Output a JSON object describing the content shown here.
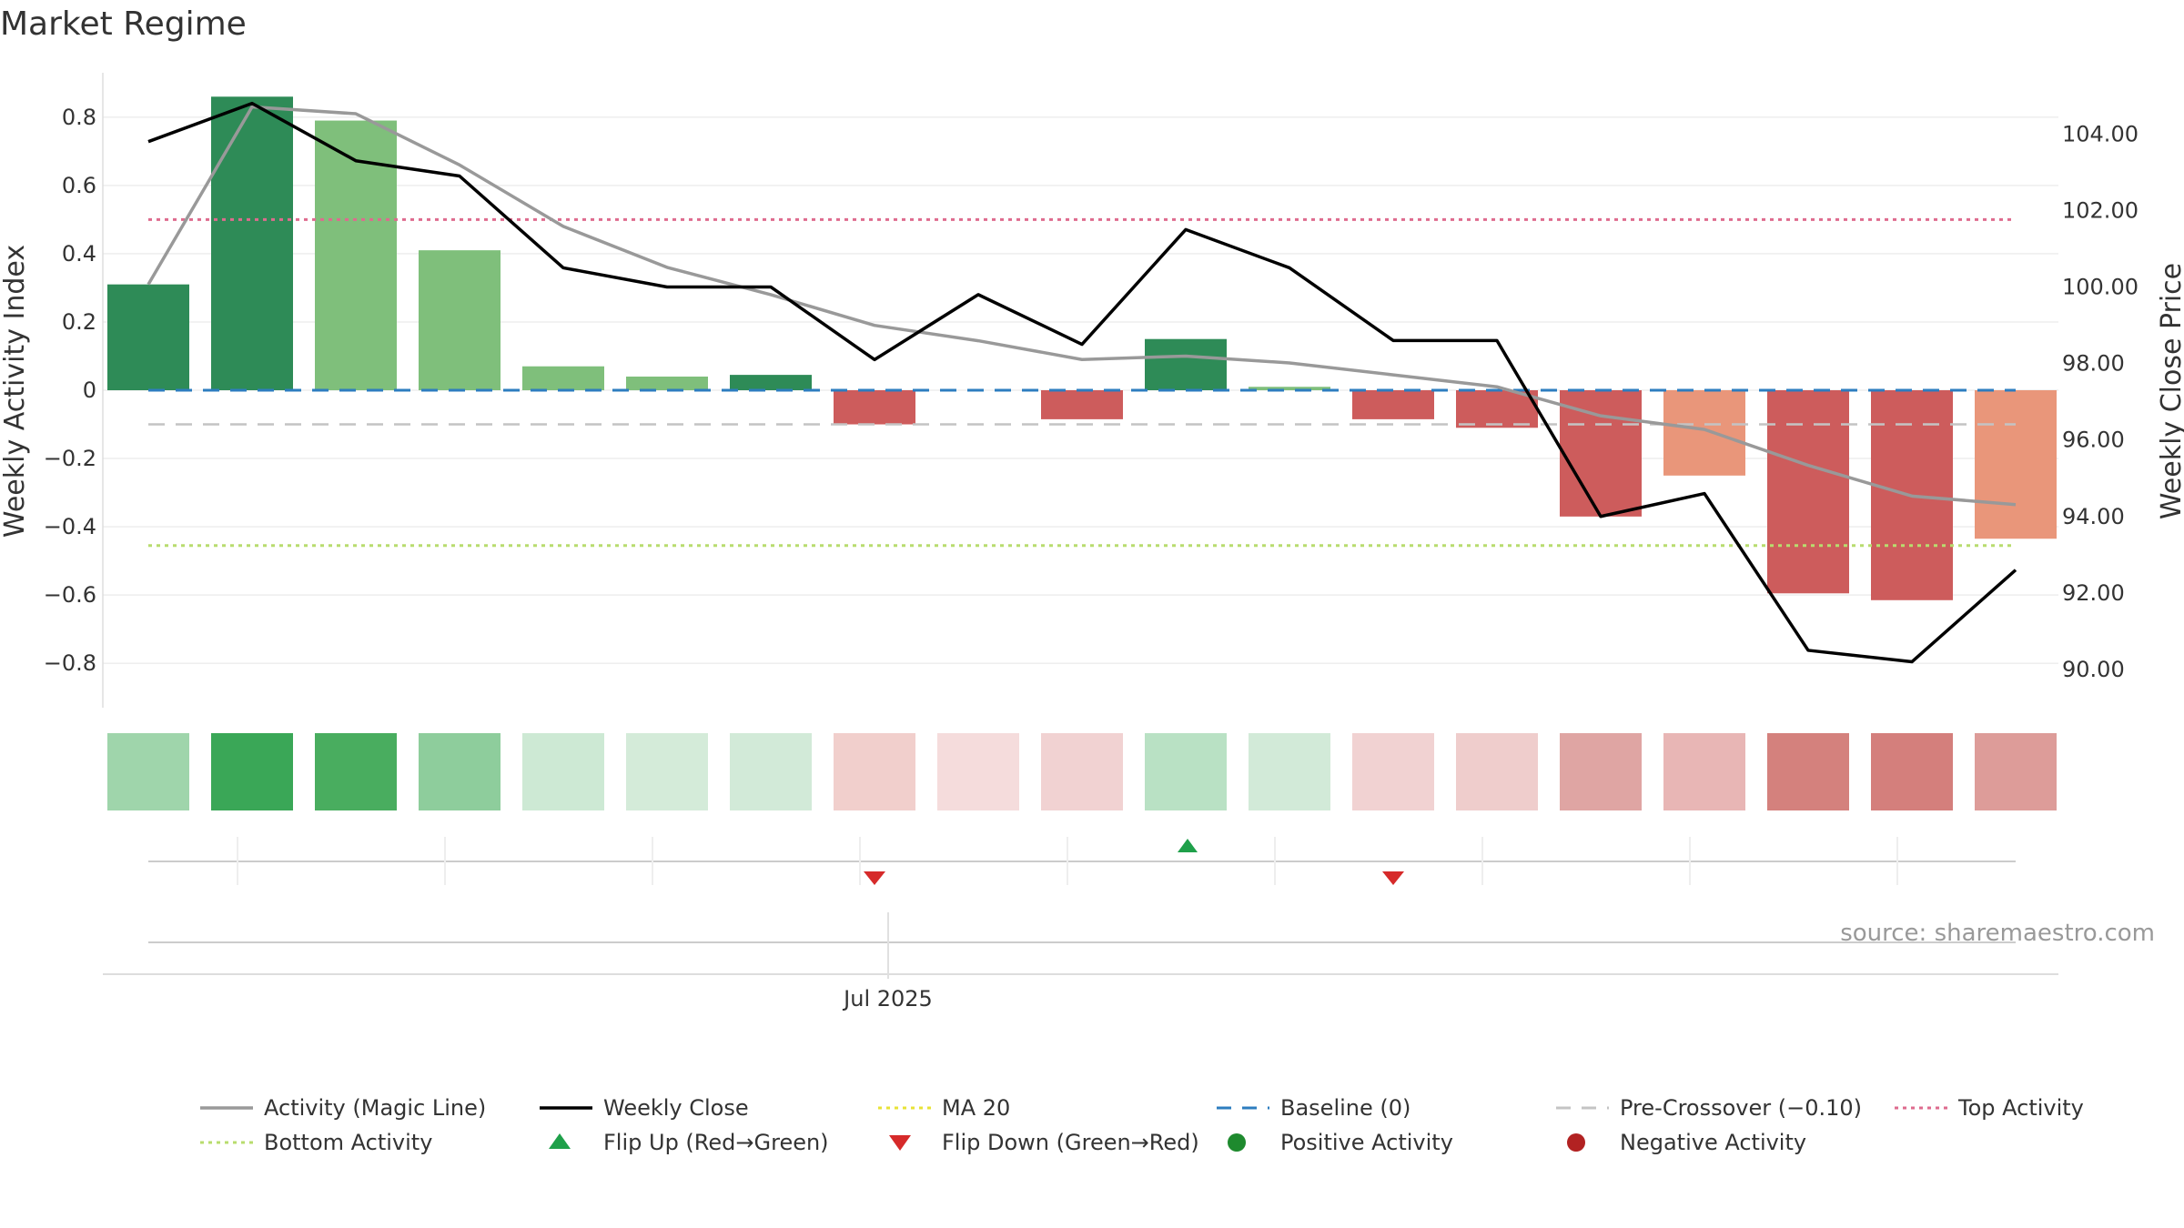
{
  "chart_data": {
    "type": "bar",
    "title": "Market Regime",
    "ylabel": "Weekly Activity Index",
    "y2label": "Weekly Close Price",
    "ylim": [
      -0.93,
      0.93
    ],
    "y2lim": [
      89.0,
      105.6
    ],
    "yticks": [
      0.8,
      0.6,
      0.4,
      0.2,
      0,
      -0.2,
      -0.4,
      -0.6,
      -0.8
    ],
    "ytick_labels": [
      "0.8",
      "0.6",
      "0.4",
      "0.2",
      "0",
      "−0.2",
      "−0.4",
      "−0.6",
      "−0.8"
    ],
    "y2ticks": [
      104,
      102,
      100,
      98,
      96,
      94,
      92,
      90
    ],
    "y2tick_labels": [
      "104.00",
      "102.00",
      "100.00",
      "98.00",
      "96.00",
      "94.00",
      "92.00",
      "90.00"
    ],
    "xtick_label": "Jul 2025",
    "weeks": 19,
    "activity": [
      0.31,
      0.86,
      0.79,
      0.41,
      0.07,
      0.04,
      0.045,
      -0.1,
      0.0,
      -0.085,
      0.15,
      0.01,
      -0.085,
      -0.11,
      -0.37,
      -0.25,
      -0.595,
      -0.615,
      -0.435
    ],
    "bar_colors": [
      "#2e8b57",
      "#2e8b57",
      "#7fbf7b",
      "#7fbf7b",
      "#7fbf7b",
      "#7fbf7b",
      "#2e8b57",
      "#cd5c5c",
      "#cccccc",
      "#cd5c5c",
      "#2e8b57",
      "#7fbf7b",
      "#cd5c5c",
      "#cd5c5c",
      "#cd5c5c",
      "#e9967a",
      "#cd5c5c",
      "#cd5c5c",
      "#e9967a"
    ],
    "magic_line": [
      0.31,
      0.83,
      0.81,
      0.66,
      0.48,
      0.36,
      0.28,
      0.19,
      0.145,
      0.09,
      0.1,
      0.08,
      0.045,
      0.01,
      -0.075,
      -0.115,
      -0.22,
      -0.31,
      -0.335
    ],
    "weekly_close": [
      103.8,
      104.8,
      103.3,
      102.9,
      100.5,
      100.0,
      100.0,
      98.1,
      99.8,
      98.5,
      101.5,
      100.5,
      98.6,
      98.6,
      94.0,
      94.6,
      90.5,
      90.2,
      92.6
    ],
    "top_activity": 0.5,
    "bottom_activity": -0.455,
    "baseline": 0,
    "pre_crossover": -0.1,
    "heat_colors": [
      "#9fd5ab",
      "#3aa757",
      "#49ad5f",
      "#8ecd9c",
      "#cde9d4",
      "#d4ebd9",
      "#d2ead8",
      "#f1cfcc",
      "#f5dcdc",
      "#f1d2d2",
      "#b9e1c4",
      "#d2ead8",
      "#f1d2d2",
      "#efcdcc",
      "#dfa5a3",
      "#e8b6b5",
      "#d4817d",
      "#d47f7c",
      "#dd9c99"
    ],
    "flip_up": [
      10
    ],
    "flip_down": [
      7,
      12
    ],
    "colors": {
      "magic_line": "#999999",
      "weekly_close": "#000000",
      "ma20": "#e8e337",
      "baseline": "#2d7dbf",
      "pre_crossover": "#c4c4c4",
      "top_activity": "#de6b8e",
      "bottom_activity": "#b8dc6e",
      "flip_up": "#1fa04a",
      "flip_down": "#d62a2a",
      "positive": "#1e8a2e",
      "negative": "#b22222"
    },
    "legend": [
      {
        "label": "Activity (Magic Line)",
        "kind": "line",
        "key": "magic_line"
      },
      {
        "label": "Weekly Close",
        "kind": "line",
        "key": "weekly_close"
      },
      {
        "label": "MA 20",
        "kind": "dotted",
        "key": "ma20"
      },
      {
        "label": "Baseline (0)",
        "kind": "dashed",
        "key": "baseline"
      },
      {
        "label": "Pre-Crossover (−0.10)",
        "kind": "dashed",
        "key": "pre_crossover"
      },
      {
        "label": "Top Activity",
        "kind": "dotted",
        "key": "top_activity"
      },
      {
        "label": "Bottom Activity",
        "kind": "dotted",
        "key": "bottom_activity"
      },
      {
        "label": "Flip Up (Red→Green)",
        "kind": "triangle-up",
        "key": "flip_up"
      },
      {
        "label": "Flip Down (Green→Red)",
        "kind": "triangle-down",
        "key": "flip_down"
      },
      {
        "label": "Positive Activity",
        "kind": "dot",
        "key": "positive"
      },
      {
        "label": "Negative Activity",
        "kind": "dot",
        "key": "negative"
      }
    ],
    "source": "source: sharemaestro.com"
  }
}
